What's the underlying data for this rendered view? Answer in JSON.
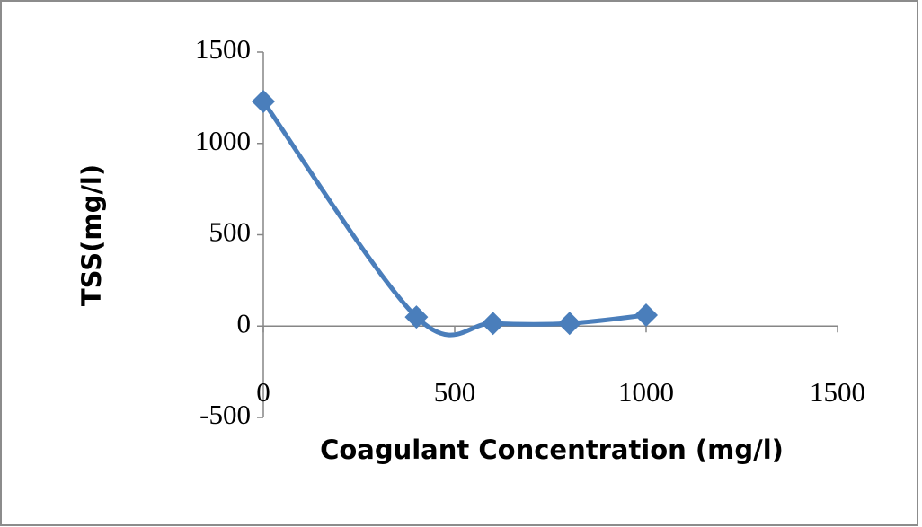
{
  "chart_data": {
    "type": "line",
    "x_label": "Coagulant Concentration (mg/l)",
    "y_label": "TSS(mg/l)",
    "x": [
      0,
      400,
      600,
      800,
      1000
    ],
    "series": [
      {
        "name": "TSS",
        "color": "#4a7ebb",
        "values": [
          1230,
          50,
          15,
          15,
          60
        ]
      }
    ],
    "smooth": true,
    "xlim": [
      0,
      1500
    ],
    "xticks": [
      0,
      500,
      1000,
      1500
    ],
    "ylim": [
      -500,
      1500
    ],
    "yticks": [
      -500,
      0,
      500,
      1000,
      1500
    ]
  }
}
